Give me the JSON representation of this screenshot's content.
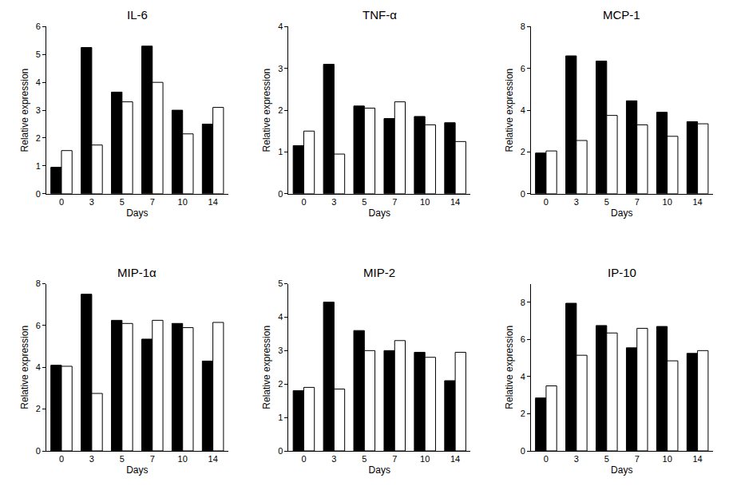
{
  "chart_data": [
    {
      "type": "bar",
      "title": "IL-6",
      "xlabel": "Days",
      "ylabel": "Relative expression",
      "categories": [
        "0",
        "3",
        "5",
        "7",
        "10",
        "14"
      ],
      "series": [
        {
          "color": "#000000",
          "values": [
            0.95,
            5.25,
            3.65,
            5.3,
            3.0,
            2.5
          ]
        },
        {
          "color": "#ffffff",
          "values": [
            1.55,
            1.75,
            3.3,
            4.0,
            2.15,
            3.1
          ]
        }
      ],
      "ylim": [
        0,
        6
      ],
      "yticks": [
        0,
        1,
        2,
        3,
        4,
        5,
        6
      ],
      "grid": false
    },
    {
      "type": "bar",
      "title": "TNF-α",
      "xlabel": "Days",
      "ylabel": "Relative expression",
      "categories": [
        "0",
        "3",
        "5",
        "7",
        "10",
        "14"
      ],
      "series": [
        {
          "color": "#000000",
          "values": [
            1.15,
            3.1,
            2.1,
            1.8,
            1.85,
            1.7
          ]
        },
        {
          "color": "#ffffff",
          "values": [
            1.5,
            0.95,
            2.05,
            2.2,
            1.65,
            1.25
          ]
        }
      ],
      "ylim": [
        0,
        4
      ],
      "yticks": [
        0,
        1,
        2,
        3,
        4
      ],
      "grid": false
    },
    {
      "type": "bar",
      "title": "MCP-1",
      "xlabel": "Days",
      "ylabel": "Relative expression",
      "categories": [
        "0",
        "3",
        "5",
        "7",
        "10",
        "14"
      ],
      "series": [
        {
          "color": "#000000",
          "values": [
            1.95,
            6.6,
            6.35,
            4.45,
            3.9,
            3.45
          ]
        },
        {
          "color": "#ffffff",
          "values": [
            2.05,
            2.55,
            3.75,
            3.3,
            2.75,
            3.35
          ]
        }
      ],
      "ylim": [
        0,
        8
      ],
      "yticks": [
        0,
        2,
        4,
        6,
        8
      ],
      "grid": false
    },
    {
      "type": "bar",
      "title": "MIP-1α",
      "xlabel": "Days",
      "ylabel": "Relative expression",
      "categories": [
        "0",
        "3",
        "5",
        "7",
        "10",
        "14"
      ],
      "series": [
        {
          "color": "#000000",
          "values": [
            4.1,
            7.5,
            6.25,
            5.35,
            6.1,
            4.3
          ]
        },
        {
          "color": "#ffffff",
          "values": [
            4.05,
            2.75,
            6.1,
            6.25,
            5.9,
            6.15
          ]
        }
      ],
      "ylim": [
        0,
        8
      ],
      "yticks": [
        0,
        2,
        4,
        6,
        8
      ],
      "grid": false
    },
    {
      "type": "bar",
      "title": "MIP-2",
      "xlabel": "Days",
      "ylabel": "Relative expression",
      "categories": [
        "0",
        "3",
        "5",
        "7",
        "10",
        "14"
      ],
      "series": [
        {
          "color": "#000000",
          "values": [
            1.8,
            4.45,
            3.6,
            3.0,
            2.95,
            2.1
          ]
        },
        {
          "color": "#ffffff",
          "values": [
            1.9,
            1.85,
            3.0,
            3.3,
            2.8,
            2.95
          ]
        }
      ],
      "ylim": [
        0,
        5
      ],
      "yticks": [
        0,
        1,
        2,
        3,
        4,
        5
      ],
      "grid": false
    },
    {
      "type": "bar",
      "title": "IP-10",
      "xlabel": "Days",
      "ylabel": "Relative expression",
      "categories": [
        "0",
        "3",
        "5",
        "7",
        "10",
        "14"
      ],
      "series": [
        {
          "color": "#000000",
          "values": [
            2.85,
            7.95,
            6.75,
            5.55,
            6.7,
            5.25
          ]
        },
        {
          "color": "#ffffff",
          "values": [
            3.5,
            5.15,
            6.35,
            6.6,
            4.85,
            5.4
          ]
        }
      ],
      "ylim": [
        0,
        9
      ],
      "yticks": [
        0,
        2,
        4,
        6,
        8
      ],
      "grid": false
    }
  ]
}
